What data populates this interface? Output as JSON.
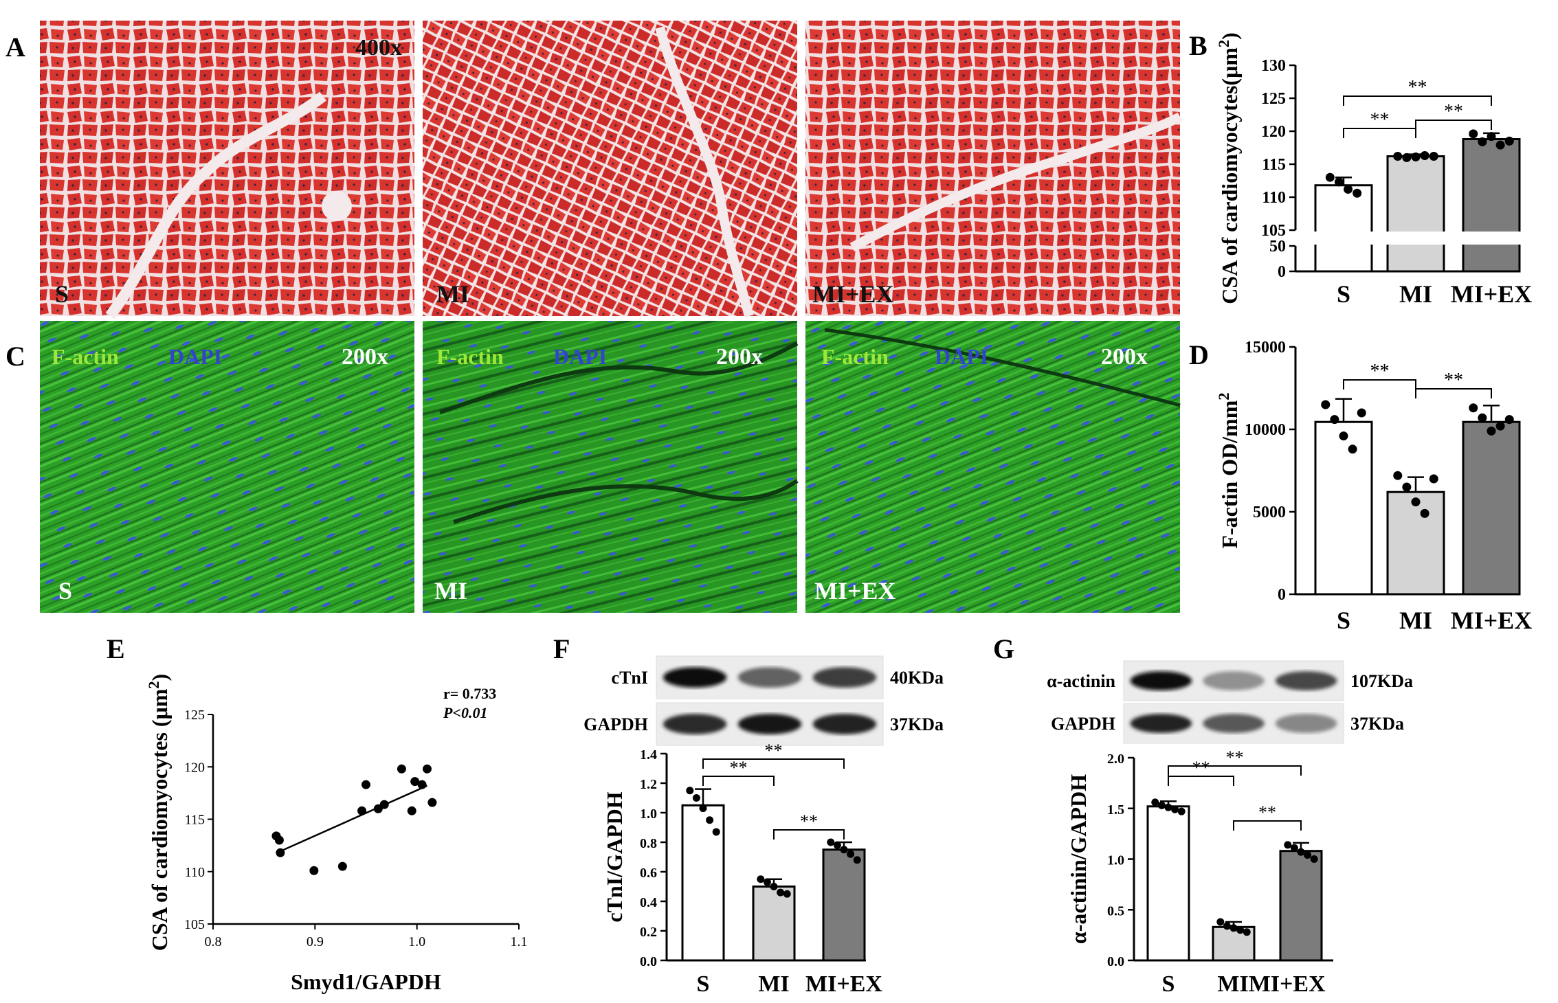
{
  "panels": {
    "A": {
      "letter": "A",
      "magnification": "400x",
      "images": [
        {
          "label": "S"
        },
        {
          "label": "MI"
        },
        {
          "label": "MI+EX"
        }
      ],
      "colors": {
        "tissue": "#d8322e",
        "background": "#f3e6e8",
        "nuclei": "#3a2540"
      }
    },
    "C": {
      "letter": "C",
      "magnification": "200x",
      "stain1": "F-actin",
      "stain2": "DAPI",
      "images": [
        {
          "label": "S"
        },
        {
          "label": "MI"
        },
        {
          "label": "MI+EX"
        }
      ],
      "colors": {
        "tissue": "#2fa52a",
        "nuclei": "#3a57d6",
        "stain1": "#9fe83a",
        "stain2": "#3344cc"
      }
    },
    "F": {
      "letter": "F",
      "blot_rows": [
        {
          "protein": "cTnI",
          "size": "40KDa",
          "intensity": [
            1.0,
            0.55,
            0.75
          ]
        },
        {
          "protein": "GAPDH",
          "size": "37KDa",
          "intensity": [
            0.85,
            0.95,
            0.9
          ]
        }
      ]
    },
    "G": {
      "letter": "G",
      "blot_rows": [
        {
          "protein": "α-actinin",
          "size": "107KDa",
          "intensity": [
            1.0,
            0.3,
            0.7
          ]
        },
        {
          "protein": "GAPDH",
          "size": "37KDa",
          "intensity": [
            0.9,
            0.6,
            0.35
          ]
        }
      ]
    }
  },
  "chart_data": [
    {
      "panel": "B",
      "type": "bar",
      "categories": [
        "S",
        "MI",
        "MI+EX"
      ],
      "values": [
        111.8,
        116.2,
        118.8
      ],
      "errors": [
        1.2,
        0.3,
        0.9
      ],
      "points": [
        [
          113.0,
          112.3,
          111.2,
          110.6
        ],
        [
          116.2,
          116.0,
          116.1,
          116.3,
          116.2
        ],
        [
          119.6,
          118.4,
          119.2,
          117.9,
          118.5
        ]
      ],
      "ylabel": "CSA of cardiomyocytes(μm²)",
      "ylim": [
        105,
        130
      ],
      "yticks": [
        105,
        110,
        115,
        120,
        125,
        130
      ],
      "yticks_lower": [
        0,
        50
      ],
      "axis_break": true,
      "bar_colors": [
        "#ffffff",
        "#d4d4d4",
        "#7c7c7c"
      ],
      "significance": [
        {
          "from": 0,
          "to": 1,
          "label": "**"
        },
        {
          "from": 1,
          "to": 2,
          "label": "**"
        },
        {
          "from": 0,
          "to": 2,
          "label": "**"
        }
      ]
    },
    {
      "panel": "D",
      "type": "bar",
      "categories": [
        "S",
        "MI",
        "MI+EX"
      ],
      "values": [
        10450,
        6200,
        10450
      ],
      "errors": [
        1400,
        900,
        1000
      ],
      "points": [
        [
          11500,
          10600,
          9600,
          8800,
          11000
        ],
        [
          7200,
          6500,
          5600,
          4900,
          7000
        ],
        [
          11300,
          10700,
          9900,
          10200,
          10600
        ]
      ],
      "ylabel": "F-actin OD/mm²",
      "ylim": [
        0,
        15000
      ],
      "yticks": [
        0,
        5000,
        10000,
        15000
      ],
      "bar_colors": [
        "#ffffff",
        "#d4d4d4",
        "#7c7c7c"
      ],
      "significance": [
        {
          "from": 0,
          "to": 1,
          "label": "**"
        },
        {
          "from": 1,
          "to": 2,
          "label": "**"
        }
      ]
    },
    {
      "panel": "E",
      "type": "scatter",
      "x": [
        0.862,
        0.865,
        0.866,
        0.899,
        0.927,
        0.946,
        0.95,
        0.962,
        0.968,
        0.985,
        0.995,
        0.998,
        1.005,
        1.01,
        1.015
      ],
      "y": [
        113.4,
        113.0,
        111.8,
        110.1,
        110.5,
        115.8,
        118.3,
        116.0,
        116.4,
        119.8,
        115.8,
        118.6,
        118.3,
        119.8,
        116.6
      ],
      "regression": {
        "x": [
          0.865,
          1.01
        ],
        "y": [
          111.9,
          118.2
        ]
      },
      "xlabel": "Smyd1/GAPDH",
      "ylabel": "CSA of cardiomyocytes (μm²)",
      "xlim": [
        0.8,
        1.1
      ],
      "ylim": [
        105,
        125
      ],
      "xticks": [
        0.8,
        0.9,
        1.0,
        1.1
      ],
      "xtick_labels": [
        "0.8",
        "0.9",
        "1.0",
        "1.1"
      ],
      "yticks": [
        105,
        110,
        115,
        120,
        125
      ],
      "annotation_r": "r= 0.733",
      "annotation_p": "P<0.01"
    },
    {
      "panel": "F",
      "type": "bar",
      "categories": [
        "S",
        "MI",
        "MI+EX"
      ],
      "values": [
        1.05,
        0.5,
        0.75
      ],
      "errors": [
        0.11,
        0.05,
        0.05
      ],
      "points": [
        [
          1.15,
          1.1,
          1.03,
          0.95,
          0.87
        ],
        [
          0.55,
          0.53,
          0.5,
          0.46,
          0.45
        ],
        [
          0.8,
          0.78,
          0.75,
          0.72,
          0.68
        ]
      ],
      "ylabel": "cTnI/GAPDH",
      "ylim": [
        0,
        1.4
      ],
      "yticks": [
        0,
        0.2,
        0.4,
        0.6,
        0.8,
        1.0,
        1.2,
        1.4
      ],
      "ytick_labels": [
        "0.0",
        "0.2",
        "0.4",
        "0.6",
        "0.8",
        "1.0",
        "1.2",
        "1.4"
      ],
      "bar_colors": [
        "#ffffff",
        "#d4d4d4",
        "#7c7c7c"
      ],
      "significance": [
        {
          "from": 0,
          "to": 1,
          "label": "**"
        },
        {
          "from": 1,
          "to": 2,
          "label": "**"
        },
        {
          "from": 0,
          "to": 2,
          "label": "**"
        }
      ]
    },
    {
      "panel": "G",
      "type": "bar",
      "categories": [
        "S",
        "MI",
        "MI+EX"
      ],
      "category_labels_rendered": [
        "S",
        "MIMI+EX"
      ],
      "values": [
        1.52,
        0.33,
        1.08
      ],
      "errors": [
        0.05,
        0.05,
        0.08
      ],
      "points": [
        [
          1.56,
          1.53,
          1.51,
          1.49,
          1.47
        ],
        [
          0.38,
          0.34,
          0.32,
          0.3,
          0.28
        ],
        [
          1.14,
          1.11,
          1.07,
          1.04,
          1.0
        ]
      ],
      "ylabel": "α-actinin/GAPDH",
      "ylim": [
        0,
        2.0
      ],
      "yticks": [
        0,
        0.5,
        1.0,
        1.5,
        2.0
      ],
      "ytick_labels": [
        "0.0",
        "0.5",
        "1.0",
        "1.5",
        "2.0"
      ],
      "bar_colors": [
        "#ffffff",
        "#d4d4d4",
        "#7c7c7c"
      ],
      "significance": [
        {
          "from": 0,
          "to": 1,
          "label": "**"
        },
        {
          "from": 1,
          "to": 2,
          "label": "**"
        },
        {
          "from": 0,
          "to": 2,
          "label": "**"
        }
      ]
    }
  ]
}
